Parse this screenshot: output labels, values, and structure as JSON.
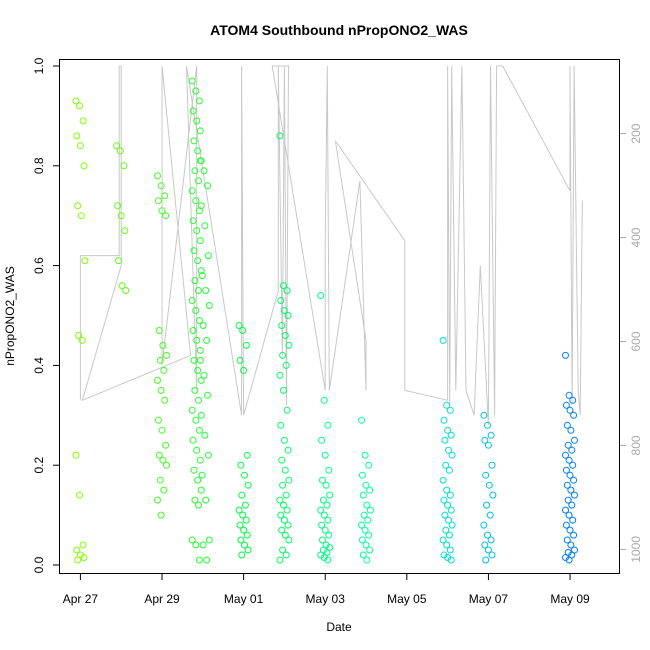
{
  "chart_data": {
    "type": "scatter",
    "title": "ATOM4 Southbound nPropONO2_WAS",
    "xlabel": "Date",
    "ylabel": "nPropONO2_WAS",
    "x_tick_labels": [
      "Apr 27",
      "Apr 29",
      "May 01",
      "May 03",
      "May 05",
      "May 07",
      "May 09"
    ],
    "x_ticks_day": [
      0,
      2,
      4,
      6,
      8,
      10,
      12
    ],
    "xlim_day": [
      -0.5,
      13.2
    ],
    "ylim": [
      0,
      1
    ],
    "y_ticks": [
      0.0,
      0.2,
      0.4,
      0.6,
      0.8,
      1.0
    ],
    "y_tick_labels": [
      "0.0",
      "0.2",
      "0.4",
      "0.6",
      "0.8",
      "1.0"
    ],
    "secondary_axis": {
      "label_side": "right",
      "color": "#aaaaaa",
      "reversed": true,
      "range": [
        70,
        1030
      ],
      "ticks": [
        200,
        400,
        600,
        800,
        1000
      ],
      "tick_labels": [
        "200",
        "400",
        "600",
        "800",
        "1000"
      ]
    },
    "grid": false,
    "colors": {
      "profile_line": "#c8c8c8",
      "point_gradient": [
        "#80ff00",
        "#00ff40",
        "#00ffbf",
        "#0080ff"
      ]
    },
    "clusters": [
      {
        "day": 0.0,
        "values": [
          0.93,
          0.92,
          0.89,
          0.86,
          0.84,
          0.8,
          0.72,
          0.7,
          0.61,
          0.46,
          0.45,
          0.22,
          0.14,
          0.04,
          0.03,
          0.02,
          0.015,
          0.01
        ]
      },
      {
        "day": 1.0,
        "values": [
          0.84,
          0.83,
          0.8,
          0.72,
          0.7,
          0.67,
          0.61,
          0.56,
          0.55
        ]
      },
      {
        "day": 2.0,
        "values": [
          0.78,
          0.76,
          0.74,
          0.73,
          0.71,
          0.7,
          0.47,
          0.44,
          0.42,
          0.41,
          0.39,
          0.37,
          0.35,
          0.33,
          0.29,
          0.27,
          0.24,
          0.22,
          0.21,
          0.2,
          0.17,
          0.15,
          0.13,
          0.1
        ]
      },
      {
        "day": 2.85,
        "values": [
          0.97,
          0.95,
          0.93,
          0.91,
          0.89,
          0.87,
          0.85,
          0.83,
          0.81,
          0.79,
          0.77,
          0.75,
          0.73,
          0.71,
          0.69,
          0.67,
          0.65,
          0.63,
          0.61,
          0.59,
          0.57,
          0.55,
          0.53,
          0.51,
          0.49,
          0.47,
          0.45,
          0.43,
          0.41,
          0.39,
          0.37,
          0.35,
          0.33,
          0.31,
          0.29,
          0.27,
          0.25,
          0.23,
          0.21,
          0.19,
          0.17,
          0.15,
          0.13,
          0.12,
          0.05,
          0.04,
          0.01
        ]
      },
      {
        "day": 3.05,
        "values": [
          0.81,
          0.79,
          0.76,
          0.72,
          0.68,
          0.62,
          0.58,
          0.55,
          0.52,
          0.48,
          0.45,
          0.41,
          0.38,
          0.34,
          0.3,
          0.26,
          0.22,
          0.18,
          0.13,
          0.05,
          0.04,
          0.01
        ]
      },
      {
        "day": 4.0,
        "values": [
          0.48,
          0.47,
          0.44,
          0.41,
          0.39,
          0.22,
          0.2,
          0.18,
          0.16,
          0.14,
          0.12,
          0.11,
          0.1,
          0.09,
          0.08,
          0.07,
          0.06,
          0.05,
          0.04,
          0.03,
          0.02
        ]
      },
      {
        "day": 5.0,
        "values": [
          0.86,
          0.56,
          0.55,
          0.53,
          0.51,
          0.5,
          0.48,
          0.46,
          0.44,
          0.42,
          0.4,
          0.38,
          0.35,
          0.31,
          0.28,
          0.25,
          0.23,
          0.21,
          0.19,
          0.17,
          0.16,
          0.14,
          0.13,
          0.12,
          0.11,
          0.1,
          0.09,
          0.08,
          0.07,
          0.06,
          0.05,
          0.03,
          0.02,
          0.01
        ]
      },
      {
        "day": 6.0,
        "values": [
          0.54,
          0.33,
          0.28,
          0.25,
          0.22,
          0.19,
          0.17,
          0.16,
          0.14,
          0.13,
          0.12,
          0.11,
          0.1,
          0.09,
          0.08,
          0.07,
          0.06,
          0.05,
          0.04,
          0.035,
          0.03,
          0.025,
          0.02,
          0.015,
          0.01
        ]
      },
      {
        "day": 7.0,
        "values": [
          0.29,
          0.22,
          0.2,
          0.18,
          0.16,
          0.15,
          0.14,
          0.12,
          0.11,
          0.1,
          0.09,
          0.08,
          0.07,
          0.06,
          0.05,
          0.04,
          0.03,
          0.02,
          0.01
        ]
      },
      {
        "day": 9.0,
        "values": [
          0.45,
          0.32,
          0.31,
          0.29,
          0.27,
          0.26,
          0.25,
          0.23,
          0.22,
          0.2,
          0.19,
          0.17,
          0.15,
          0.14,
          0.13,
          0.12,
          0.11,
          0.1,
          0.09,
          0.08,
          0.07,
          0.06,
          0.05,
          0.04,
          0.03,
          0.02,
          0.015,
          0.01
        ]
      },
      {
        "day": 10.0,
        "values": [
          0.3,
          0.28,
          0.26,
          0.25,
          0.24,
          0.2,
          0.18,
          0.16,
          0.14,
          0.12,
          0.1,
          0.08,
          0.06,
          0.05,
          0.04,
          0.03,
          0.02,
          0.01
        ]
      },
      {
        "day": 12.0,
        "values": [
          0.42,
          0.34,
          0.33,
          0.32,
          0.31,
          0.3,
          0.28,
          0.27,
          0.25,
          0.24,
          0.23,
          0.22,
          0.21,
          0.2,
          0.19,
          0.18,
          0.17,
          0.16,
          0.15,
          0.14,
          0.13,
          0.12,
          0.11,
          0.1,
          0.09,
          0.08,
          0.07,
          0.06,
          0.05,
          0.04,
          0.03,
          0.025,
          0.02,
          0.015,
          0.01
        ]
      }
    ],
    "profile_trace": [
      [
        0.0,
        0.33
      ],
      [
        0.0,
        0.62
      ],
      [
        0.95,
        0.62
      ],
      [
        0.95,
        1.0
      ],
      [
        1.0,
        1.0
      ],
      [
        1.0,
        0.6
      ],
      [
        0.05,
        0.33
      ],
      [
        2.7,
        0.42
      ],
      [
        2.0,
        1.0
      ],
      [
        2.0,
        0.4
      ],
      [
        2.85,
        1.0
      ],
      [
        2.85,
        0.35
      ],
      [
        2.6,
        1.0
      ],
      [
        3.95,
        0.3
      ],
      [
        3.95,
        1.0
      ],
      [
        4.0,
        0.3
      ],
      [
        4.85,
        0.55
      ],
      [
        4.85,
        1.0
      ],
      [
        4.95,
        0.42
      ],
      [
        5.0,
        1.0
      ],
      [
        5.05,
        0.32
      ],
      [
        5.1,
        1.0
      ],
      [
        4.7,
        1.0
      ],
      [
        6.0,
        0.35
      ],
      [
        6.0,
        0.65
      ],
      [
        6.05,
        1.0
      ],
      [
        6.1,
        0.35
      ],
      [
        6.85,
        0.77
      ],
      [
        7.0,
        0.35
      ],
      [
        7.0,
        0.45
      ],
      [
        6.25,
        0.85
      ],
      [
        7.95,
        0.65
      ],
      [
        7.95,
        0.35
      ],
      [
        9.0,
        0.33
      ],
      [
        9.0,
        1.0
      ],
      [
        9.05,
        0.32
      ],
      [
        9.1,
        1.0
      ],
      [
        9.2,
        0.35
      ],
      [
        9.35,
        1.0
      ],
      [
        9.45,
        0.35
      ],
      [
        9.65,
        0.3
      ],
      [
        9.8,
        0.6
      ],
      [
        10.0,
        0.28
      ],
      [
        10.05,
        1.0
      ],
      [
        10.15,
        0.3
      ],
      [
        10.2,
        1.0
      ],
      [
        10.35,
        1.0
      ],
      [
        12.0,
        0.75
      ],
      [
        12.0,
        1.0
      ],
      [
        12.05,
        0.32
      ],
      [
        12.1,
        1.0
      ],
      [
        12.2,
        0.35
      ],
      [
        12.25,
        0.3
      ],
      [
        12.3,
        0.73
      ]
    ]
  }
}
